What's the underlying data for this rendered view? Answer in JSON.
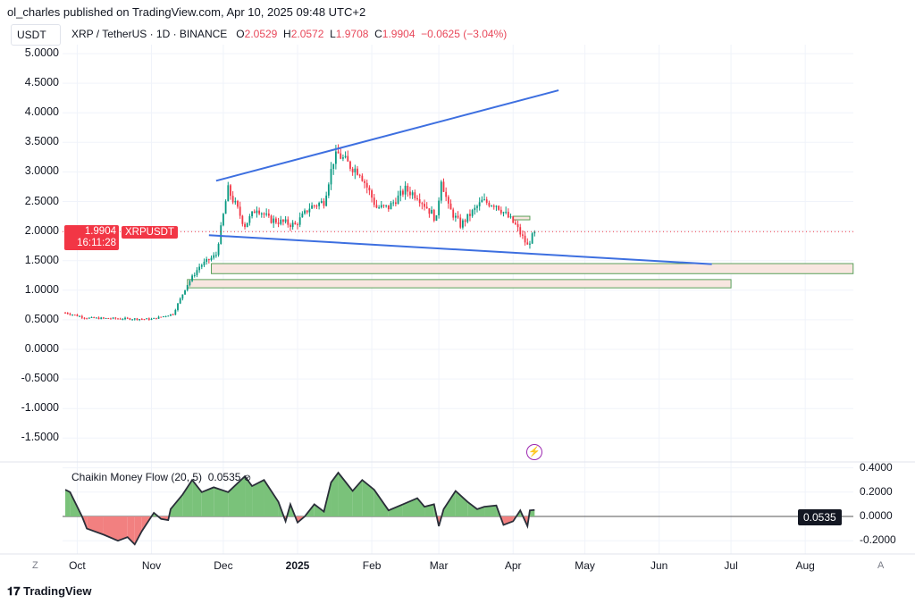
{
  "header": {
    "published": "ol_charles published on TradingView.com, Apr 10, 2025 09:48 UTC+2",
    "currency": "USDT",
    "symbol": "XRP / TetherUS · 1D · BINANCE",
    "o_label": "O",
    "o": "2.0529",
    "h_label": "H",
    "h": "2.0572",
    "l_label": "L",
    "l": "1.9708",
    "c_label": "C",
    "c": "1.9904",
    "change": "−0.0625 (−3.04%)"
  },
  "price_tag": {
    "price": "1.9904",
    "countdown": "16:11:28",
    "symbol": "XRPUSDT"
  },
  "indicator": {
    "name": "Chaikin Money Flow (20, 5)",
    "value": "0.0535",
    "tag": "0.0535"
  },
  "footer": {
    "brand": "TradingView",
    "logo": "TV"
  },
  "time_axis": {
    "left_btn": "Z",
    "right_btn": "A"
  },
  "colors": {
    "up": "#089981",
    "down": "#f23645",
    "trendline": "#3d6fe0",
    "cmf_pos": "#7ac27a",
    "cmf_neg": "#f28080",
    "zone_fill": "#f8e6e0",
    "zone_border": "#5aa05a"
  },
  "chart_data": [
    {
      "type": "candlestick",
      "title": "XRP / TetherUS · 1D · BINANCE",
      "ylim": [
        -1.8,
        5.2
      ],
      "y_ticks": [
        "5.0000",
        "4.5000",
        "4.0000",
        "3.5000",
        "3.0000",
        "2.5000",
        "2.0000",
        "1.5000",
        "1.0000",
        "0.5000",
        "0.0000",
        "-0.5000",
        "-1.0000",
        "-1.5000"
      ],
      "x_ticks": [
        {
          "date": "2024-10-01",
          "label": "Oct"
        },
        {
          "date": "2024-11-01",
          "label": "Nov"
        },
        {
          "date": "2024-12-01",
          "label": "Dec"
        },
        {
          "date": "2025-01-01",
          "label": "2025"
        },
        {
          "date": "2025-02-01",
          "label": "Feb"
        },
        {
          "date": "2025-03-01",
          "label": "Mar"
        },
        {
          "date": "2025-04-01",
          "label": "Apr"
        },
        {
          "date": "2025-05-01",
          "label": "May"
        },
        {
          "date": "2025-06-01",
          "label": "Jun"
        },
        {
          "date": "2025-07-01",
          "label": "Jul"
        },
        {
          "date": "2025-08-01",
          "label": "Aug"
        }
      ],
      "close_path": [
        [
          "2024-09-26",
          0.62
        ],
        [
          "2024-10-05",
          0.53
        ],
        [
          "2024-11-01",
          0.51
        ],
        [
          "2024-11-10",
          0.6
        ],
        [
          "2024-11-16",
          1.1
        ],
        [
          "2024-11-21",
          1.4
        ],
        [
          "2024-11-28",
          1.6
        ],
        [
          "2024-12-02",
          2.5
        ],
        [
          "2024-12-03",
          2.7
        ],
        [
          "2024-12-10",
          2.1
        ],
        [
          "2024-12-15",
          2.4
        ],
        [
          "2024-12-20",
          2.2
        ],
        [
          "2024-12-31",
          2.1
        ],
        [
          "2025-01-06",
          2.4
        ],
        [
          "2025-01-12",
          2.5
        ],
        [
          "2025-01-16",
          3.2
        ],
        [
          "2025-01-18",
          3.3
        ],
        [
          "2025-01-23",
          3.1
        ],
        [
          "2025-01-27",
          3.0
        ],
        [
          "2025-02-03",
          2.4
        ],
        [
          "2025-02-08",
          2.4
        ],
        [
          "2025-02-15",
          2.7
        ],
        [
          "2025-02-20",
          2.6
        ],
        [
          "2025-02-28",
          2.2
        ],
        [
          "2025-03-02",
          2.9
        ],
        [
          "2025-03-05",
          2.4
        ],
        [
          "2025-03-10",
          2.1
        ],
        [
          "2025-03-19",
          2.5
        ],
        [
          "2025-03-25",
          2.45
        ],
        [
          "2025-04-02",
          2.1
        ],
        [
          "2025-04-07",
          1.75
        ],
        [
          "2025-04-10",
          1.99
        ]
      ],
      "last_close": 1.9904,
      "trendlines": [
        {
          "from": [
            "2024-11-28",
            2.85
          ],
          "to": [
            "2025-04-20",
            4.38
          ]
        },
        {
          "from": [
            "2024-11-25",
            1.93
          ],
          "to": [
            "2025-06-23",
            1.44
          ]
        }
      ],
      "zones": [
        {
          "from": "2024-11-26",
          "to": "2025-08-21",
          "top": 1.45,
          "bottom": 1.28
        },
        {
          "from": "2024-11-16",
          "to": "2025-07-01",
          "top": 1.18,
          "bottom": 1.04
        },
        {
          "from": "2025-04-01",
          "to": "2025-04-08",
          "top": 2.25,
          "bottom": 2.19
        }
      ]
    },
    {
      "type": "area",
      "title": "Chaikin Money Flow (20, 5)",
      "ylim": [
        -0.3,
        0.45
      ],
      "y_ticks": [
        "0.4000",
        "0.2000",
        "0.0000",
        "-0.2000"
      ],
      "points": [
        [
          "2024-09-26",
          0.22
        ],
        [
          "2024-09-28",
          0.2
        ],
        [
          "2024-10-03",
          0.0
        ],
        [
          "2024-10-05",
          -0.1
        ],
        [
          "2024-10-12",
          -0.15
        ],
        [
          "2024-10-18",
          -0.2
        ],
        [
          "2024-10-22",
          -0.17
        ],
        [
          "2024-10-25",
          -0.23
        ],
        [
          "2024-10-28",
          -0.12
        ],
        [
          "2024-11-02",
          0.03
        ],
        [
          "2024-11-05",
          -0.02
        ],
        [
          "2024-11-08",
          -0.03
        ],
        [
          "2024-11-09",
          0.06
        ],
        [
          "2024-11-14",
          0.18
        ],
        [
          "2024-11-18",
          0.3
        ],
        [
          "2024-11-22",
          0.2
        ],
        [
          "2024-11-27",
          0.24
        ],
        [
          "2024-12-03",
          0.2
        ],
        [
          "2024-12-10",
          0.33
        ],
        [
          "2024-12-13",
          0.25
        ],
        [
          "2024-12-18",
          0.3
        ],
        [
          "2024-12-24",
          0.12
        ],
        [
          "2024-12-27",
          -0.04
        ],
        [
          "2024-12-29",
          0.1
        ],
        [
          "2025-01-01",
          -0.05
        ],
        [
          "2025-01-04",
          0.0
        ],
        [
          "2025-01-08",
          0.1
        ],
        [
          "2025-01-12",
          0.04
        ],
        [
          "2025-01-15",
          0.28
        ],
        [
          "2025-01-18",
          0.36
        ],
        [
          "2025-01-24",
          0.21
        ],
        [
          "2025-01-28",
          0.3
        ],
        [
          "2025-02-02",
          0.22
        ],
        [
          "2025-02-08",
          0.05
        ],
        [
          "2025-02-14",
          0.1
        ],
        [
          "2025-02-20",
          0.15
        ],
        [
          "2025-02-23",
          0.08
        ],
        [
          "2025-02-27",
          0.1
        ],
        [
          "2025-03-01",
          -0.08
        ],
        [
          "2025-03-03",
          0.06
        ],
        [
          "2025-03-08",
          0.21
        ],
        [
          "2025-03-13",
          0.12
        ],
        [
          "2025-03-17",
          0.06
        ],
        [
          "2025-03-20",
          0.08
        ],
        [
          "2025-03-25",
          0.09
        ],
        [
          "2025-03-28",
          -0.07
        ],
        [
          "2025-04-01",
          -0.04
        ],
        [
          "2025-04-04",
          0.05
        ],
        [
          "2025-04-07",
          -0.08
        ],
        [
          "2025-04-08",
          0.05
        ],
        [
          "2025-04-10",
          0.0535
        ]
      ]
    }
  ]
}
